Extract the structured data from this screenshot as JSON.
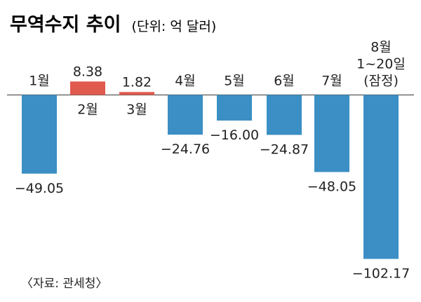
{
  "title": "무역수지 추이",
  "unit": "(단위: 억 달러)",
  "source": "〈자료: 관세청〉",
  "colors": {
    "positive": "#e05a4e",
    "negative": "#3b8fc4",
    "axis": "#555555"
  },
  "chart_data": {
    "type": "bar",
    "title": "무역수지 추이",
    "unit": "억 달러",
    "categories": [
      "1월",
      "2월",
      "3월",
      "4월",
      "5월",
      "6월",
      "7월",
      "8월 1~20일 (잠정)"
    ],
    "category_lines": [
      [
        "1월"
      ],
      [
        "2월"
      ],
      [
        "3월"
      ],
      [
        "4월"
      ],
      [
        "5월"
      ],
      [
        "6월"
      ],
      [
        "7월"
      ],
      [
        "8월",
        "1~20일",
        "(잠정)"
      ]
    ],
    "values": [
      -49.05,
      8.38,
      1.82,
      -24.76,
      -16.0,
      -24.87,
      -48.05,
      -102.17
    ],
    "value_labels": [
      "−49.05",
      "8.38",
      "1.82",
      "−24.76",
      "−16.00",
      "−24.87",
      "−48.05",
      "−102.17"
    ],
    "grid": false,
    "legend": "none"
  }
}
